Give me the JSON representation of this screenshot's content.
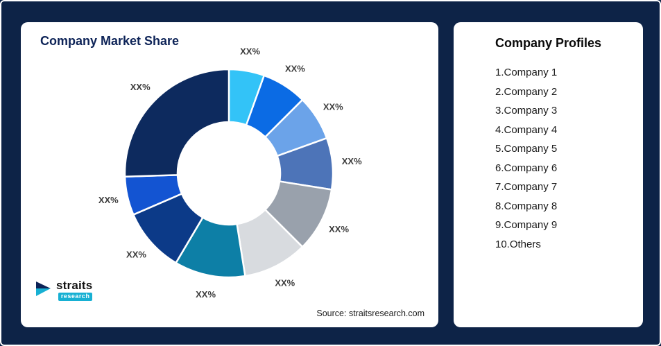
{
  "page": {
    "background_color": "#0d2347"
  },
  "market_share_card": {
    "title": "Company Market Share",
    "source": "Source: straitsresearch.com",
    "logo": {
      "name": "straits",
      "tagline": "research"
    }
  },
  "chart_data": {
    "type": "pie",
    "donut": true,
    "title": "Company Market Share",
    "categories": [
      "Company 1",
      "Company 2",
      "Company 3",
      "Company 4",
      "Company 5",
      "Company 6",
      "Company 7",
      "Company 8",
      "Company 9",
      "Others"
    ],
    "values": [
      5.5,
      7,
      7,
      8,
      10,
      10,
      11,
      10,
      6,
      25.5
    ],
    "labels": [
      "XX%",
      "XX%",
      "XX%",
      "XX%",
      "XX%",
      "XX%",
      "XX%",
      "XX%",
      "XX%",
      "XX%"
    ],
    "colors": [
      "#33c3f7",
      "#0b6be4",
      "#6ba3e9",
      "#4d74b8",
      "#99a1ac",
      "#d8dbdf",
      "#0d7fa6",
      "#0c3a88",
      "#1354d2",
      "#0d2a5e"
    ],
    "start_angle_deg": 0,
    "direction": "clockwise",
    "inner_radius_ratio": 0.49,
    "legend": "none",
    "value_label_format": "XX%"
  },
  "profiles_card": {
    "title": "Company Profiles",
    "items": [
      "1.Company 1",
      "2.Company 2",
      "3.Company 3",
      "4.Company 4",
      "5.Company 5",
      "6.Company 6",
      "7.Company 7",
      "8.Company 8",
      "9.Company 9",
      "10.Others"
    ]
  }
}
